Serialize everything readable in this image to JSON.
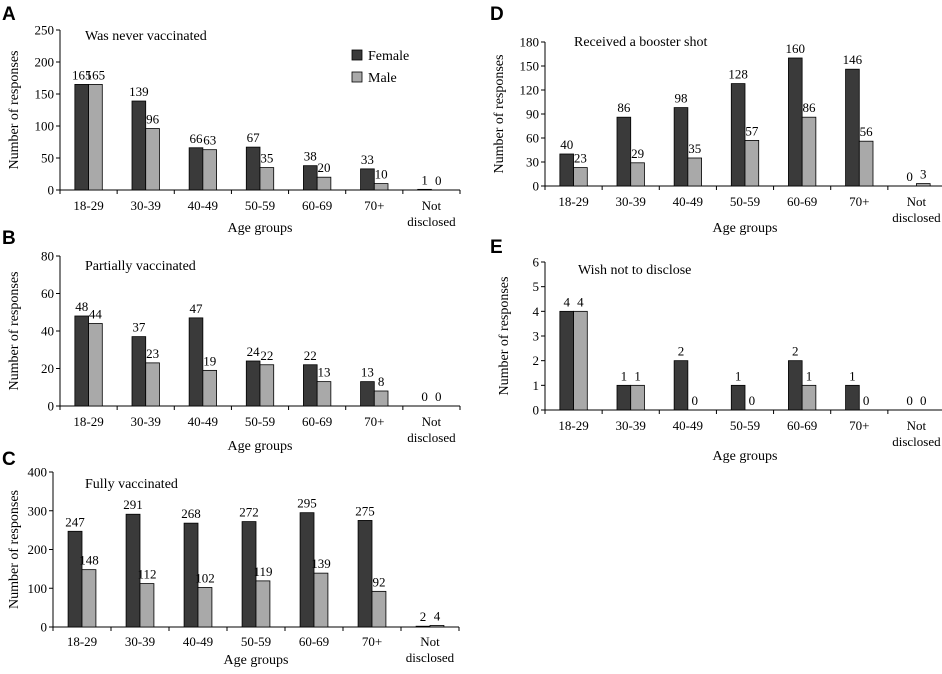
{
  "chart_data": [
    {
      "panel": "A",
      "type": "bar",
      "title": "Was never vaccinated",
      "xlabel": "Age groups",
      "ylabel": "Number of responses",
      "ylim": [
        0,
        250
      ],
      "yticks": [
        "0",
        "50",
        "100",
        "150",
        "200",
        "250"
      ],
      "categories": [
        "18-29",
        "30-39",
        "40-49",
        "50-59",
        "60-69",
        "70+",
        "Not disclosed"
      ],
      "series": [
        {
          "name": "Female",
          "color": "#3a3a3a",
          "values": [
            165,
            139,
            66,
            67,
            38,
            33,
            1
          ]
        },
        {
          "name": "Male",
          "color": "#a9a9a9",
          "values": [
            165,
            96,
            63,
            35,
            20,
            10,
            0
          ]
        }
      ],
      "legend": "top-right"
    },
    {
      "panel": "B",
      "type": "bar",
      "title": "Partially vaccinated",
      "xlabel": "Age groups",
      "ylabel": "Number of responses",
      "ylim": [
        0,
        80
      ],
      "yticks": [
        "0",
        "20",
        "40",
        "60",
        "80"
      ],
      "categories": [
        "18-29",
        "30-39",
        "40-49",
        "50-59",
        "60-69",
        "70+",
        "Not disclosed"
      ],
      "series": [
        {
          "name": "Female",
          "color": "#3a3a3a",
          "values": [
            48,
            37,
            47,
            24,
            22,
            13,
            0
          ]
        },
        {
          "name": "Male",
          "color": "#a9a9a9",
          "values": [
            44,
            23,
            19,
            22,
            13,
            8,
            0
          ]
        }
      ]
    },
    {
      "panel": "C",
      "type": "bar",
      "title": "Fully vaccinated",
      "xlabel": "Age groups",
      "ylabel": "Number of responses",
      "ylim": [
        0,
        400
      ],
      "yticks": [
        "0",
        "100",
        "200",
        "300",
        "400"
      ],
      "categories": [
        "18-29",
        "30-39",
        "40-49",
        "50-59",
        "60-69",
        "70+",
        "Not disclosed"
      ],
      "series": [
        {
          "name": "Female",
          "color": "#3a3a3a",
          "values": [
            247,
            291,
            268,
            272,
            295,
            275,
            2
          ]
        },
        {
          "name": "Male",
          "color": "#a9a9a9",
          "values": [
            148,
            112,
            102,
            119,
            139,
            92,
            4
          ]
        }
      ]
    },
    {
      "panel": "D",
      "type": "bar",
      "title": "Received a booster shot",
      "xlabel": "Age groups",
      "ylabel": "Number of responses",
      "ylim": [
        0,
        180
      ],
      "yticks": [
        "0",
        "30",
        "60",
        "90",
        "120",
        "150",
        "180"
      ],
      "categories": [
        "18-29",
        "30-39",
        "40-49",
        "50-59",
        "60-69",
        "70+",
        "Not disclosed"
      ],
      "series": [
        {
          "name": "Female",
          "color": "#3a3a3a",
          "values": [
            40,
            86,
            98,
            128,
            160,
            146,
            0
          ]
        },
        {
          "name": "Male",
          "color": "#a9a9a9",
          "values": [
            23,
            29,
            35,
            57,
            86,
            56,
            3
          ]
        }
      ]
    },
    {
      "panel": "E",
      "type": "bar",
      "title": "Wish not to disclose",
      "xlabel": "Age groups",
      "ylabel": "Number of responses",
      "ylim": [
        0,
        6
      ],
      "yticks": [
        "0",
        "1",
        "2",
        "3",
        "4",
        "5",
        "6"
      ],
      "categories": [
        "18-29",
        "30-39",
        "40-49",
        "50-59",
        "60-69",
        "70+",
        "Not disclosed"
      ],
      "series": [
        {
          "name": "Female",
          "color": "#3a3a3a",
          "values": [
            4,
            1,
            2,
            1,
            2,
            1,
            0
          ]
        },
        {
          "name": "Male",
          "color": "#a9a9a9",
          "values": [
            4,
            1,
            0,
            0,
            1,
            0,
            0
          ]
        }
      ]
    }
  ]
}
